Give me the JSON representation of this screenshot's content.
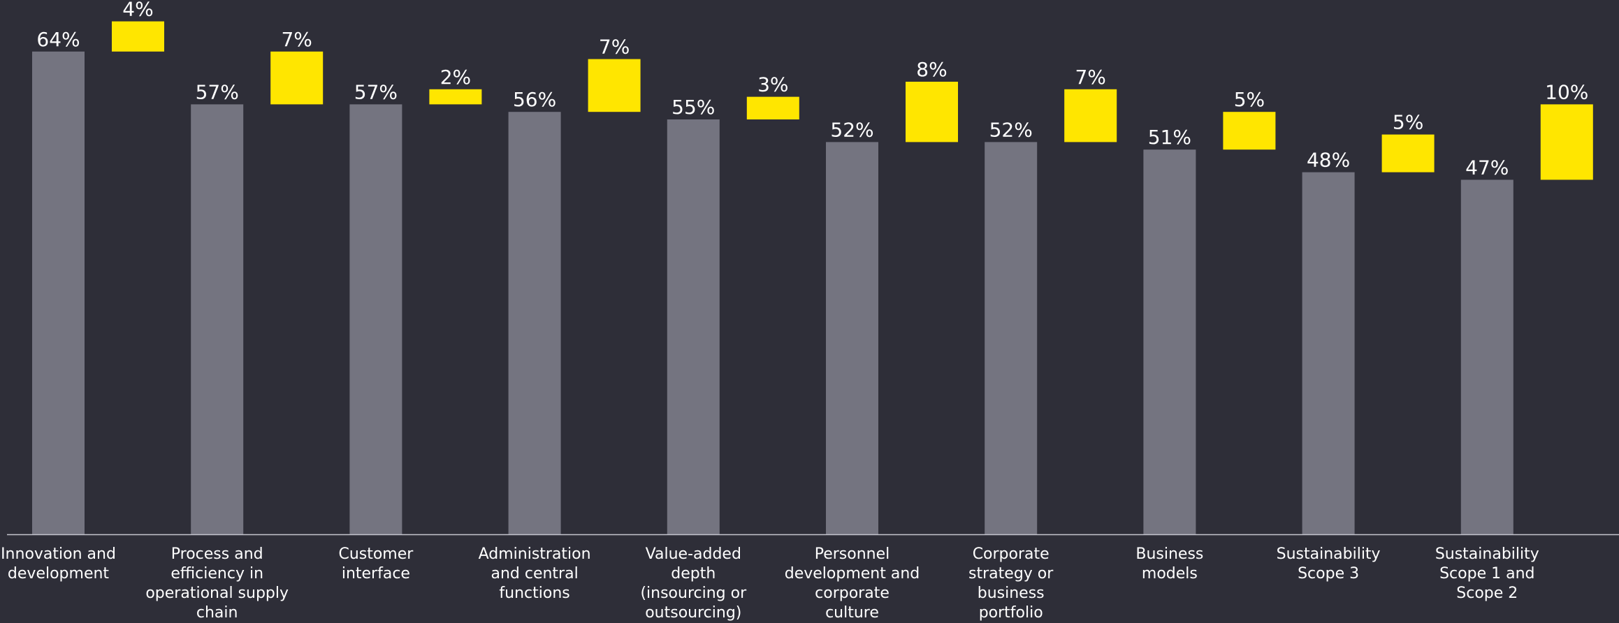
{
  "chart_data": {
    "type": "bar",
    "categories": [
      "Innovation and\ndevelopment",
      "Process and\nefficiency in\noperational supply\nchain",
      "Customer\ninterface",
      "Administration\nand central\nfunctions",
      "Value-added\ndepth\n(insourcing or\noutsourcing)",
      "Personnel\ndevelopment and\ncorporate\nculture",
      "Corporate\nstrategy or\nbusiness\nportfolio",
      "Business\nmodels",
      "Sustainability\nScope 3",
      "Sustainability\nScope 1 and\nScope 2"
    ],
    "series": [
      {
        "values": [
          64,
          57,
          57,
          56,
          55,
          52,
          52,
          51,
          48,
          47
        ],
        "labels": [
          "64%",
          "57%",
          "57%",
          "56%",
          "55%",
          "52%",
          "52%",
          "51%",
          "48%",
          "47%"
        ],
        "color": "#747480"
      },
      {
        "values": [
          4,
          7,
          2,
          7,
          3,
          8,
          7,
          5,
          5,
          10
        ],
        "labels": [
          "4%",
          "7%",
          "2%",
          "7%",
          "3%",
          "8%",
          "7%",
          "5%",
          "5%",
          "10%"
        ],
        "color": "#ffe600"
      }
    ],
    "stacking": "floating increment on top of base value",
    "title": "",
    "xlabel": "",
    "ylabel": "",
    "ylim": [
      0,
      68
    ],
    "grid": false,
    "legend": "none",
    "axis_color": "#c4c4cd",
    "label_color": "#ffffff",
    "background": "#2e2e38"
  }
}
